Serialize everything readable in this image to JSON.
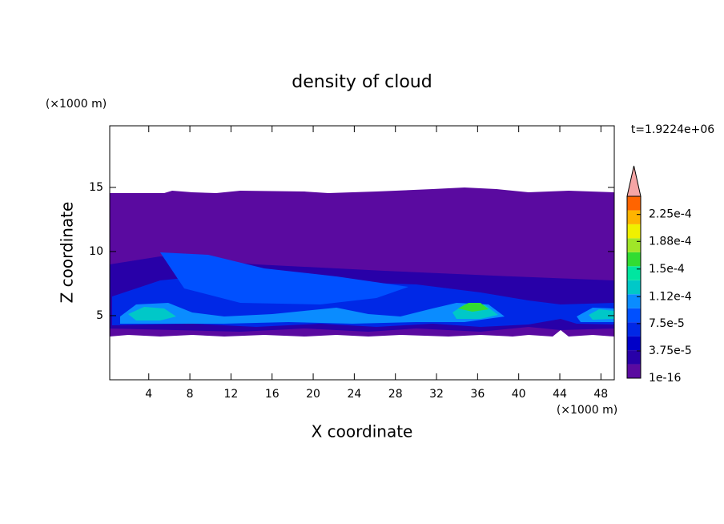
{
  "chart_data": {
    "type": "contour",
    "title": "density of cloud",
    "x_label": "X coordinate",
    "y_label": "Z coordinate",
    "x_unit": "(×1000 m)",
    "y_unit": "(×1000 m)",
    "time_label": "t=1.9224e+06",
    "xlim": [
      0.2,
      49.3
    ],
    "ylim": [
      0,
      19.8
    ],
    "xticks": [
      4,
      8,
      12,
      16,
      20,
      24,
      28,
      32,
      36,
      40,
      44,
      48
    ],
    "yticks": [
      5,
      10,
      15
    ],
    "colorbar": {
      "clim": [
        0,
        0.00025
      ],
      "ticks": [
        1e-16,
        {
          "value": 3.75e-05,
          "label": "3.75e-5"
        },
        {
          "value": 7.5e-05,
          "label": "7.5e-5"
        },
        {
          "value": 0.000112,
          "label": "1.12e-4"
        },
        {
          "value": 0.00015,
          "label": "1.5e-4"
        },
        {
          "value": 0.000188,
          "label": "1.88e-4"
        },
        {
          "value": 0.000225,
          "label": "2.25e-4"
        }
      ],
      "colors": [
        "#5a0aa0",
        "#2800a8",
        "#0000c8",
        "#0028e6",
        "#0050ff",
        "#0a8cff",
        "#00c8c8",
        "#00e6a0",
        "#32dc32",
        "#a0e628",
        "#f0f000",
        "#ffb400",
        "#ff6400"
      ],
      "extend_color": "#f5a5a5"
    }
  }
}
